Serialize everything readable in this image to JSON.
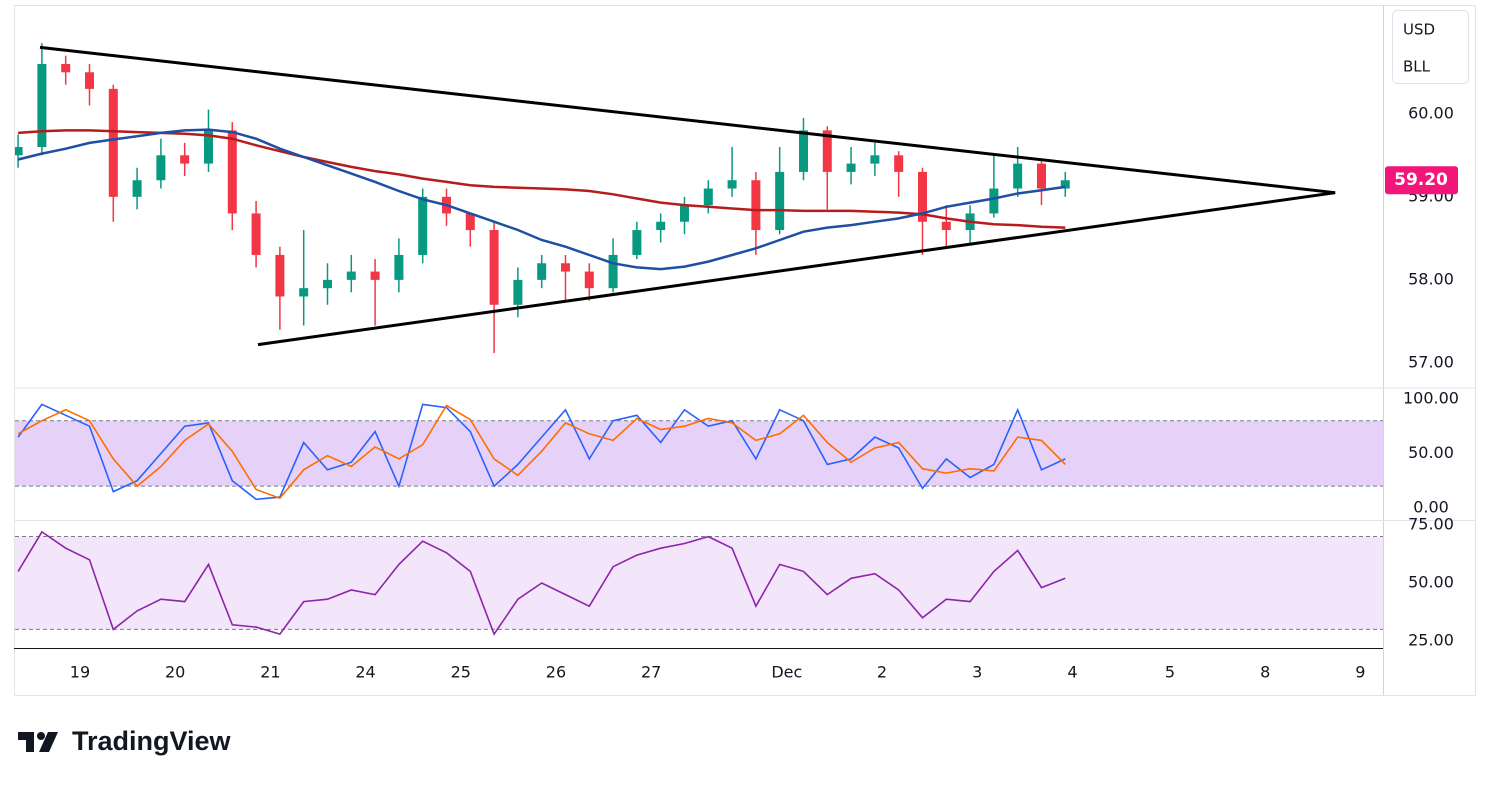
{
  "chart_data": [
    {
      "type": "candlestick",
      "currency": "USD",
      "symbol": "BLL",
      "up_color": "#089981",
      "down_color": "#f23645",
      "open": [
        59.5,
        59.6,
        60.6,
        60.5,
        60.3,
        59.0,
        59.2,
        59.5,
        59.4,
        59.8,
        58.8,
        58.3,
        57.8,
        57.9,
        58.0,
        58.1,
        58.0,
        58.3,
        59.0,
        58.8,
        58.6,
        57.7,
        58.0,
        58.2,
        58.1,
        57.9,
        58.3,
        58.6,
        58.7,
        58.9,
        59.1,
        59.2,
        58.6,
        59.3,
        59.8,
        59.3,
        59.4,
        59.5,
        59.3,
        58.7,
        58.6,
        58.8,
        59.1,
        59.4,
        59.1
      ],
      "high": [
        59.75,
        60.85,
        60.7,
        60.6,
        60.35,
        59.35,
        59.7,
        59.65,
        60.05,
        59.9,
        58.95,
        58.4,
        58.6,
        58.2,
        58.3,
        58.25,
        58.5,
        59.1,
        59.1,
        58.8,
        58.7,
        58.15,
        58.3,
        58.3,
        58.2,
        58.5,
        58.7,
        58.8,
        59.0,
        59.2,
        59.6,
        59.3,
        59.6,
        59.95,
        59.85,
        59.6,
        59.65,
        59.55,
        59.35,
        58.9,
        58.9,
        59.5,
        59.6,
        59.45,
        59.3
      ],
      "low": [
        59.35,
        59.5,
        60.35,
        60.1,
        58.7,
        58.85,
        59.1,
        59.25,
        59.3,
        58.6,
        58.15,
        57.4,
        57.45,
        57.7,
        57.85,
        57.45,
        57.85,
        58.2,
        58.65,
        58.4,
        57.12,
        57.55,
        57.9,
        57.75,
        57.75,
        57.85,
        58.25,
        58.45,
        58.55,
        58.8,
        59.0,
        58.3,
        58.55,
        59.2,
        58.85,
        59.15,
        59.25,
        59.0,
        58.3,
        58.4,
        58.45,
        58.75,
        59.0,
        58.9,
        59.0
      ],
      "close": [
        59.6,
        60.6,
        60.5,
        60.3,
        59.0,
        59.2,
        59.5,
        59.4,
        59.8,
        58.8,
        58.3,
        57.8,
        57.9,
        58.0,
        58.1,
        58.0,
        58.3,
        59.0,
        58.8,
        58.6,
        57.7,
        58.0,
        58.2,
        58.1,
        57.9,
        58.3,
        58.6,
        58.7,
        58.9,
        59.1,
        59.2,
        58.6,
        59.3,
        59.8,
        59.3,
        59.4,
        59.5,
        59.3,
        58.7,
        58.6,
        58.8,
        59.1,
        59.4,
        59.1,
        59.2
      ],
      "overlays": [
        {
          "color": "#b71c1c",
          "values": [
            59.77,
            59.79,
            59.8,
            59.8,
            59.79,
            59.78,
            59.77,
            59.76,
            59.74,
            59.7,
            59.62,
            59.55,
            59.48,
            59.42,
            59.36,
            59.31,
            59.27,
            59.22,
            59.18,
            59.14,
            59.12,
            59.11,
            59.1,
            59.09,
            59.07,
            59.03,
            58.98,
            58.93,
            58.9,
            58.88,
            58.86,
            58.84,
            58.84,
            58.83,
            58.83,
            58.83,
            58.82,
            58.81,
            58.79,
            58.74,
            58.7,
            58.67,
            58.66,
            58.64,
            58.63
          ]
        },
        {
          "color": "#1e4fa3",
          "values": [
            59.45,
            59.52,
            59.58,
            59.65,
            59.69,
            59.73,
            59.77,
            59.8,
            59.81,
            59.78,
            59.7,
            59.58,
            59.48,
            59.38,
            59.28,
            59.18,
            59.07,
            58.97,
            58.9,
            58.8,
            58.7,
            58.6,
            58.48,
            58.4,
            58.3,
            58.2,
            58.15,
            58.13,
            58.16,
            58.22,
            58.3,
            58.38,
            58.48,
            58.58,
            58.63,
            58.66,
            58.7,
            58.74,
            58.8,
            58.88,
            58.93,
            58.98,
            59.04,
            59.08,
            59.12
          ]
        }
      ],
      "trendlines": [
        {
          "x": [
            0.92,
            55.34
          ],
          "values": [
            60.8,
            59.05
          ]
        },
        {
          "x": [
            10.08,
            55.34
          ],
          "values": [
            57.22,
            59.05
          ]
        }
      ],
      "last_price": {
        "value": 59.2,
        "label": "59.20"
      },
      "last_price_color": "#f2157a",
      "xlim": [
        -0.13,
        57.35
      ],
      "ylim": [
        56.71,
        61.31
      ],
      "yticks": [
        {
          "value": 57,
          "label": "57.00"
        },
        {
          "value": 58,
          "label": "58.00"
        },
        {
          "value": 59,
          "label": "59.00"
        },
        {
          "value": 60,
          "label": "60.00"
        }
      ]
    },
    {
      "type": "line",
      "series": [
        {
          "color": "#2962ff",
          "values": [
            65,
            95,
            85,
            75,
            15,
            25,
            50,
            75,
            78,
            25,
            8,
            10,
            60,
            35,
            42,
            70,
            20,
            95,
            92,
            70,
            20,
            40,
            65,
            90,
            45,
            80,
            85,
            60,
            90,
            75,
            80,
            45,
            90,
            80,
            40,
            45,
            65,
            55,
            18,
            45,
            28,
            40,
            90,
            35,
            45
          ]
        },
        {
          "color": "#ff6d00",
          "values": [
            68,
            80,
            90,
            80,
            45,
            20,
            38,
            62,
            77,
            52,
            17,
            9,
            35,
            48,
            38,
            56,
            45,
            58,
            94,
            81,
            45,
            30,
            52,
            78,
            68,
            62,
            82,
            72,
            75,
            82,
            78,
            62,
            68,
            85,
            60,
            42,
            55,
            60,
            36,
            32,
            36,
            34,
            65,
            62,
            40
          ]
        }
      ],
      "bands": [
        20,
        80
      ],
      "band_color": "#e6d2f8",
      "xlim": [
        -0.13,
        57.35
      ],
      "ylim": [
        -11,
        110
      ],
      "yticks": [
        {
          "value": 0,
          "label": "0.00"
        },
        {
          "value": 50,
          "label": "50.00"
        },
        {
          "value": 100,
          "label": "100.00"
        }
      ]
    },
    {
      "type": "line",
      "series": [
        {
          "color": "#8e24aa",
          "values": [
            55,
            72,
            65,
            60,
            30,
            38,
            43,
            42,
            58,
            32,
            31,
            28,
            42,
            43,
            47,
            45,
            58,
            68,
            63,
            55,
            28,
            43,
            50,
            45,
            40,
            57,
            62,
            65,
            67,
            70,
            65,
            40,
            58,
            55,
            45,
            52,
            54,
            47,
            35,
            43,
            42,
            55,
            64,
            48,
            52
          ]
        }
      ],
      "bands": [
        30,
        70
      ],
      "band_color": "#f3e6fb",
      "xlim": [
        -0.13,
        57.35
      ],
      "ylim": [
        22,
        76.7
      ],
      "yticks": [
        {
          "value": 25,
          "label": "25.00"
        },
        {
          "value": 50,
          "label": "50.00"
        },
        {
          "value": 75,
          "label": "75.00"
        }
      ],
      "xticks": [
        {
          "value": 2.6,
          "label": "19"
        },
        {
          "value": 6.6,
          "label": "20"
        },
        {
          "value": 10.6,
          "label": "21"
        },
        {
          "value": 14.6,
          "label": "24"
        },
        {
          "value": 18.6,
          "label": "25"
        },
        {
          "value": 22.6,
          "label": "26"
        },
        {
          "value": 26.6,
          "label": "27"
        },
        {
          "value": 32.3,
          "label": "Dec"
        },
        {
          "value": 36.3,
          "label": "2"
        },
        {
          "value": 40.3,
          "label": "3"
        },
        {
          "value": 44.3,
          "label": "4"
        },
        {
          "value": 48.4,
          "label": "5"
        },
        {
          "value": 52.4,
          "label": "8"
        },
        {
          "value": 56.4,
          "label": "9"
        }
      ]
    }
  ],
  "brand": "TradingView"
}
